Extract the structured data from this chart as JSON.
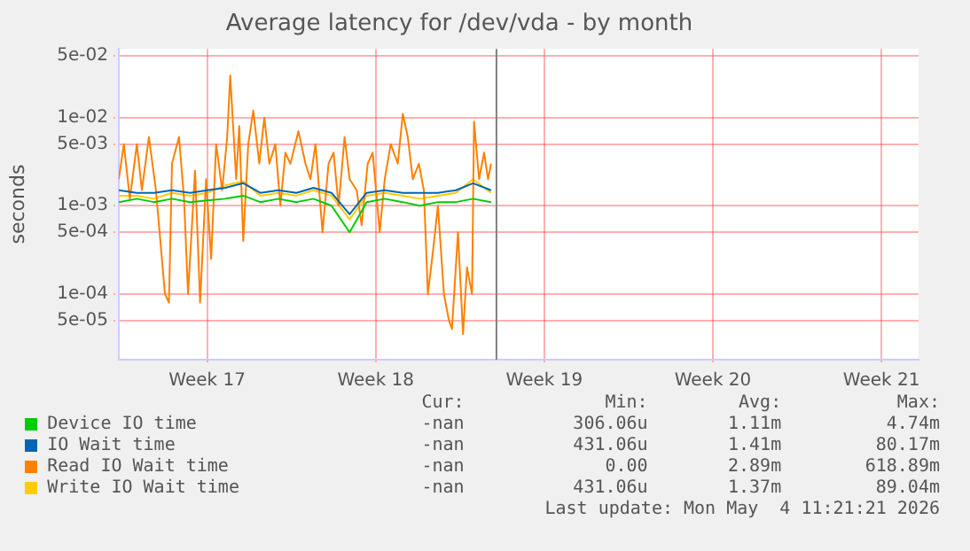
{
  "chart_data": {
    "type": "line",
    "title": "Average latency for /dev/vda - by month",
    "ylabel": "seconds",
    "log": "y",
    "grid": true,
    "legend": "bottom",
    "marker": "none",
    "xlim": [
      "2026-04-18T19:00",
      "2026-05-22T00:00"
    ],
    "xticks": [
      {
        "value": "2026-04-22T11:00",
        "label": "Week 17"
      },
      {
        "value": "2026-04-29T11:00",
        "label": "Week 18"
      },
      {
        "value": "2026-05-06T11:00",
        "label": "Week 19"
      },
      {
        "value": "2026-05-13T11:00",
        "label": "Week 20"
      },
      {
        "value": "2026-05-20T11:00",
        "label": "Week 21"
      }
    ],
    "ylim": [
      1.8e-05,
      0.06
    ],
    "yticks": [
      {
        "value": 0.05,
        "label": "5e-02"
      },
      {
        "value": 0.01,
        "label": "1e-02"
      },
      {
        "value": 0.005,
        "label": "5e-03"
      },
      {
        "value": 0.001,
        "label": "1e-03"
      },
      {
        "value": 0.0005,
        "label": "5e-04"
      },
      {
        "value": 0.0001,
        "label": "1e-04"
      },
      {
        "value": 5e-05,
        "label": "5e-05"
      }
    ],
    "x": [
      "2026-04-18T19:00",
      "2026-04-19T13:00",
      "2026-04-20T06:00",
      "2026-04-21T00:00",
      "2026-04-21T18:00",
      "2026-04-22T11:00",
      "2026-04-23T05:00",
      "2026-04-23T23:00",
      "2026-04-24T16:00",
      "2026-04-25T10:00",
      "2026-04-26T04:00",
      "2026-04-26T21:00",
      "2026-04-27T15:00",
      "2026-04-28T09:00",
      "2026-04-29T02:00",
      "2026-04-29T20:00",
      "2026-04-30T14:00",
      "2026-05-01T07:00",
      "2026-05-02T01:00",
      "2026-05-02T19:00",
      "2026-05-03T12:00",
      "2026-05-04T06:00"
    ],
    "series": [
      {
        "name": "Device IO time",
        "color": "#00cc00",
        "values": [
          0.0011,
          0.0012,
          0.0011,
          0.0012,
          0.0011,
          0.00115,
          0.0012,
          0.0013,
          0.0011,
          0.0012,
          0.0011,
          0.0012,
          0.001,
          0.0005,
          0.0011,
          0.0012,
          0.0011,
          0.001,
          0.0011,
          0.0011,
          0.0012,
          0.0011
        ]
      },
      {
        "name": "IO Wait time",
        "color": "#0066b3",
        "values": [
          0.0015,
          0.0014,
          0.0014,
          0.0015,
          0.0014,
          0.0015,
          0.0016,
          0.0018,
          0.0014,
          0.0015,
          0.0014,
          0.0016,
          0.0014,
          0.0008,
          0.0014,
          0.0015,
          0.0014,
          0.0014,
          0.0014,
          0.0015,
          0.0018,
          0.0015
        ]
      },
      {
        "name": "Read IO Wait time",
        "color": "#ff8000",
        "x": [
          "2026-04-18T19:00",
          "2026-04-19T00:00",
          "2026-04-19T06:00",
          "2026-04-19T13:00",
          "2026-04-19T18:00",
          "2026-04-20T01:00",
          "2026-04-20T08:00",
          "2026-04-20T17:00",
          "2026-04-20T21:00",
          "2026-04-21T00:00",
          "2026-04-21T07:00",
          "2026-04-21T12:00",
          "2026-04-21T16:00",
          "2026-04-21T23:00",
          "2026-04-22T04:00",
          "2026-04-22T10:00",
          "2026-04-22T15:00",
          "2026-04-22T20:00",
          "2026-04-23T02:00",
          "2026-04-23T07:00",
          "2026-04-23T10:00",
          "2026-04-23T16:00",
          "2026-04-23T19:00",
          "2026-04-23T23:00",
          "2026-04-24T04:00",
          "2026-04-24T09:00",
          "2026-04-24T15:00",
          "2026-04-24T20:00",
          "2026-04-25T01:00",
          "2026-04-25T07:00",
          "2026-04-25T12:00",
          "2026-04-25T17:00",
          "2026-04-25T22:00",
          "2026-04-26T06:00",
          "2026-04-26T13:00",
          "2026-04-26T18:00",
          "2026-04-26T23:00",
          "2026-04-27T06:00",
          "2026-04-27T12:00",
          "2026-04-27T17:00",
          "2026-04-27T22:00",
          "2026-04-28T04:00",
          "2026-04-28T09:00",
          "2026-04-28T16:00",
          "2026-04-28T21:00",
          "2026-04-29T03:00",
          "2026-04-29T08:00",
          "2026-04-29T15:00",
          "2026-04-29T20:00",
          "2026-04-30T02:00",
          "2026-04-30T09:00",
          "2026-04-30T14:00",
          "2026-04-30T19:00",
          "2026-05-01T00:00",
          "2026-05-01T06:00",
          "2026-05-01T11:00",
          "2026-05-01T15:00",
          "2026-05-01T20:00",
          "2026-05-02T01:00",
          "2026-05-02T07:00",
          "2026-05-02T12:00",
          "2026-05-02T15:00",
          "2026-05-02T21:00",
          "2026-05-03T02:00",
          "2026-05-03T06:00",
          "2026-05-03T11:00",
          "2026-05-03T13:00",
          "2026-05-03T18:00",
          "2026-05-03T23:00",
          "2026-05-04T03:00",
          "2026-05-04T06:00"
        ],
        "values": [
          0.002,
          0.005,
          0.0012,
          0.005,
          0.0015,
          0.006,
          0.0015,
          0.0001,
          8e-05,
          0.003,
          0.006,
          0.0012,
          0.0001,
          0.0025,
          8e-05,
          0.002,
          0.00025,
          0.005,
          0.0015,
          0.006,
          0.03,
          0.002,
          0.008,
          0.0004,
          0.005,
          0.012,
          0.003,
          0.01,
          0.003,
          0.005,
          0.001,
          0.004,
          0.003,
          0.007,
          0.003,
          0.002,
          0.005,
          0.0005,
          0.003,
          0.004,
          0.001,
          0.006,
          0.002,
          0.0015,
          0.0006,
          0.003,
          0.004,
          0.0005,
          0.002,
          0.005,
          0.003,
          0.011,
          0.006,
          0.002,
          0.003,
          0.0015,
          0.0001,
          0.0003,
          0.001,
          0.0001,
          5e-05,
          4e-05,
          0.0005,
          3.5e-05,
          0.0002,
          0.0001,
          0.009,
          0.002,
          0.004,
          0.002,
          0.003
        ]
      },
      {
        "name": "Write IO Wait time",
        "color": "#ffcc00",
        "values": [
          0.0013,
          0.0013,
          0.0012,
          0.0014,
          0.0013,
          0.0014,
          0.0017,
          0.0019,
          0.0013,
          0.0014,
          0.0013,
          0.0015,
          0.0013,
          0.0007,
          0.0013,
          0.0014,
          0.0013,
          0.0012,
          0.0013,
          0.0014,
          0.002,
          0.0014
        ]
      }
    ],
    "ref_lines": [
      {
        "axis": "x",
        "value": "2026-05-04T11:21",
        "color": "#808080"
      }
    ],
    "annotations": [
      "Cur:",
      "Min:",
      "Avg:",
      "Max:",
      "-nan",
      "306.06u",
      "1.11m",
      "4.74m",
      "-nan",
      "431.06u",
      "1.41m",
      "80.17m",
      "-nan",
      "0.00",
      "2.89m",
      "618.89m",
      "-nan",
      "431.06u",
      "1.37m",
      "89.04m",
      "Last update: Mon May  4 11:21:21 2026"
    ]
  }
}
